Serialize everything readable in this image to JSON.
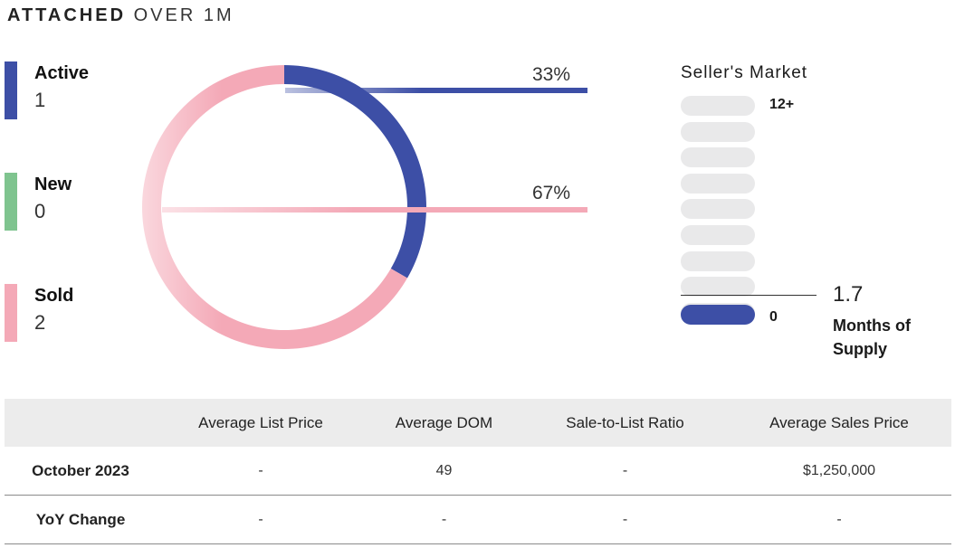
{
  "header": {
    "title_bold": "ATTACHED",
    "title_light": "OVER 1M"
  },
  "legend": [
    {
      "label": "Active",
      "value": "1",
      "color": "#3d4fa6"
    },
    {
      "label": "New",
      "value": "0",
      "color": "#7fc48f"
    },
    {
      "label": "Sold",
      "value": "2",
      "color": "#f4a9b7"
    }
  ],
  "chart_data": {
    "type": "pie",
    "variant": "donut",
    "categories": [
      "Active",
      "Sold"
    ],
    "values": [
      1,
      2
    ],
    "percent_labels": [
      "33%",
      "67%"
    ],
    "colors": [
      "#3d4fa6",
      "#f4a9b7"
    ]
  },
  "market": {
    "title": "Seller's Market",
    "top_label": "12+",
    "bottom_label": "0",
    "value": "1.7",
    "value_label": "Months of Supply",
    "scale_max": 12,
    "months_of_supply": 1.7
  },
  "table": {
    "headers": [
      "",
      "Average List Price",
      "Average DOM",
      "Sale-to-List Ratio",
      "Average Sales Price"
    ],
    "rows": [
      [
        "October 2023",
        "-",
        "49",
        "-",
        "$1,250,000"
      ],
      [
        "YoY Change",
        "-",
        "-",
        "-",
        "-"
      ]
    ]
  }
}
